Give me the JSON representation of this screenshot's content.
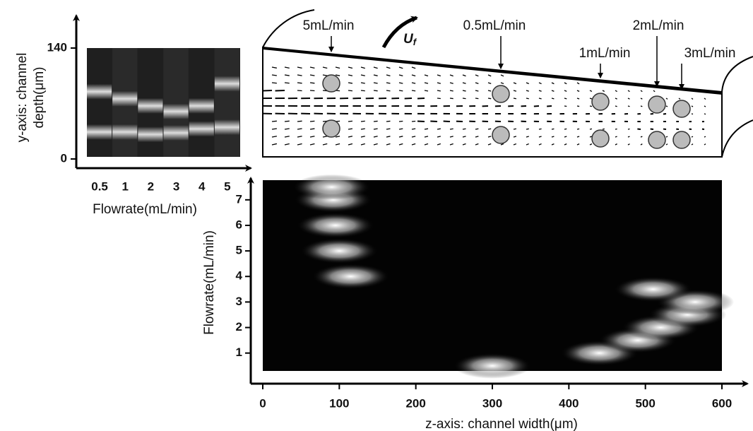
{
  "chart_data": [
    {
      "type": "strips",
      "ylabel": [
        "y-axis: channel",
        "depth(μm)"
      ],
      "xlabel": "Flowrate(mL/min)",
      "categories": [
        "0.5",
        "1",
        "2",
        "3",
        "4",
        "5"
      ],
      "values": [
        [
          85,
          34
        ],
        [
          76,
          34
        ],
        [
          67,
          31
        ],
        [
          60,
          33
        ],
        [
          67,
          38
        ],
        [
          95,
          40
        ]
      ],
      "ylim": [
        0,
        140
      ],
      "yticks": [
        0,
        140
      ]
    },
    {
      "type": "heatmap",
      "xlabel": "z-axis: channel width(μm)",
      "ylabel": "Flowrate(mL/min)",
      "x": [
        300,
        440,
        490,
        520,
        555,
        565,
        510,
        115,
        100,
        95,
        92,
        90
      ],
      "values": [
        0.5,
        1,
        1.5,
        2,
        2.5,
        3,
        3.5,
        4,
        5,
        6,
        7,
        7.5
      ],
      "xlim": [
        0,
        600
      ],
      "xticks": [
        0,
        100,
        200,
        300,
        400,
        500,
        600
      ],
      "ylim": [
        0.3,
        7.77
      ],
      "yticks": [
        1,
        2,
        3,
        4,
        5,
        6,
        7
      ]
    }
  ],
  "diagram": {
    "flow_label": {
      "main": "U",
      "sub": "f"
    },
    "labels": [
      "5mL/min",
      "0.5mL/min",
      "1mL/min",
      "2mL/min",
      "3mL/min"
    ]
  }
}
